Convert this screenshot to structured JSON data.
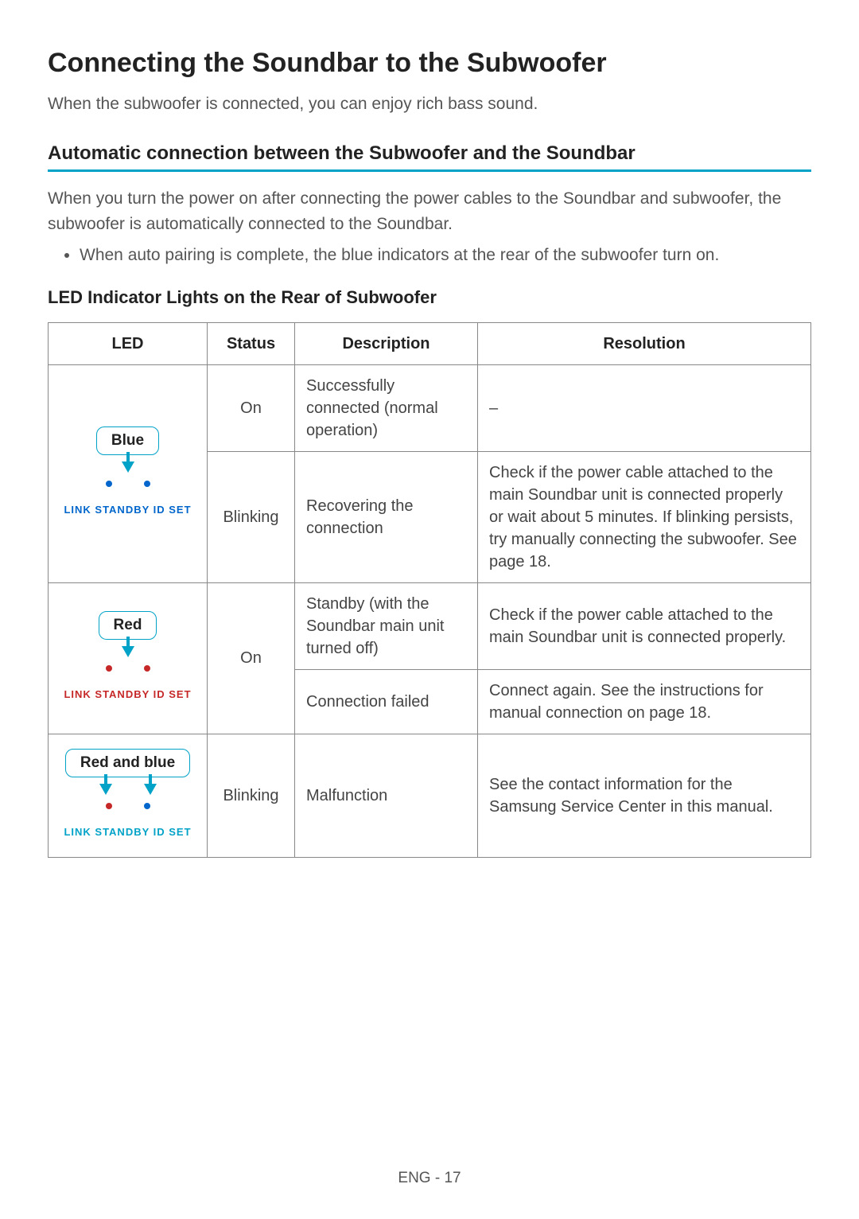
{
  "colors": {
    "accent": "#00a2c7",
    "text": "#333333",
    "muted": "#555555",
    "border": "#888888",
    "blue_led": "#0066cc",
    "red_led": "#c62828"
  },
  "title": "Connecting the Soundbar to the Subwoofer",
  "intro": "When the subwoofer is connected, you can enjoy rich bass sound.",
  "subheading": "Automatic connection between the Subwoofer and the Soundbar",
  "subpara": "When you turn the power on after connecting the power cables to the Soundbar and subwoofer, the subwoofer is automatically connected to the Soundbar.",
  "bullet1": "When auto pairing is complete, the blue indicators at the rear of the subwoofer turn on.",
  "table_title": "LED Indicator Lights on the Rear of Subwoofer",
  "panel_label_text": "LINK  STANDBY  ID SET",
  "table": {
    "headers": {
      "led": "LED",
      "status": "Status",
      "desc": "Description",
      "res": "Resolution"
    },
    "groups": [
      {
        "led_label": "Blue",
        "led_colors": {
          "link": "#0066cc",
          "standby": "#0066cc",
          "panel_text": "#0066cc"
        },
        "pointers": 1,
        "rows": [
          {
            "status": "On",
            "desc": "Successfully connected (normal operation)",
            "res": "–"
          },
          {
            "status": "Blinking",
            "desc": "Recovering the connection",
            "res": "Check if the power cable attached to the main Soundbar unit is connected properly or wait about 5 minutes. If blinking persists, try manually connecting the subwoofer. See page 18."
          }
        ]
      },
      {
        "led_label": "Red",
        "led_colors": {
          "link": "#c62828",
          "standby": "#c62828",
          "panel_text": "#c62828"
        },
        "pointers": 1,
        "status_merged": "On",
        "rows": [
          {
            "desc": "Standby (with the Soundbar main unit turned off)",
            "res": "Check if the power cable attached to the main Soundbar unit is connected properly."
          },
          {
            "desc": "Connection failed",
            "res": "Connect again. See the instructions for manual connection on page 18."
          }
        ]
      },
      {
        "led_label": "Red and blue",
        "led_colors": {
          "link": "#c62828",
          "standby": "#0066cc",
          "panel_text": "#00a2c7"
        },
        "pointers": 2,
        "rows": [
          {
            "status": "Blinking",
            "desc": "Malfunction",
            "res": "See the contact information for the Samsung Service Center in this manual."
          }
        ]
      }
    ]
  },
  "footer": "ENG - 17"
}
